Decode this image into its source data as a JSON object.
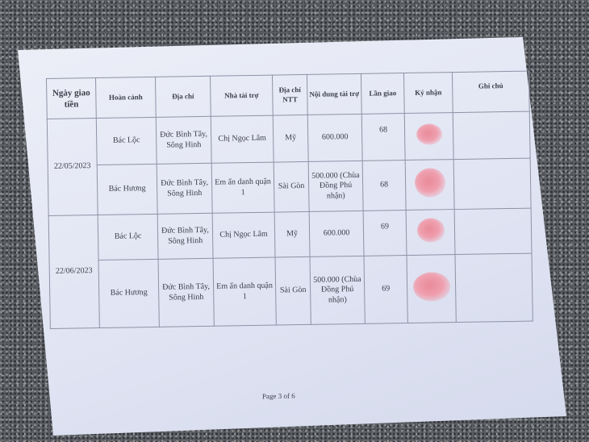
{
  "table": {
    "headers": [
      "Ngày giao tiền",
      "Hoàn cảnh",
      "Địa chỉ",
      "Nhà tài trợ",
      "Địa chỉ NTT",
      "Nội dung tài trợ",
      "Lần giao",
      "Ký nhận",
      "Ghi chú"
    ],
    "groups": [
      {
        "date": "22/05/2023",
        "rows": [
          {
            "hoan_canh": "Bác Lộc",
            "dia_chi": "Đức Bình Tây, Sông Hinh",
            "nha_tai_tro": "Chị Ngọc Lâm",
            "dia_chi_ntt": "Mỹ",
            "noi_dung": "600.000",
            "lan_giao": "68",
            "ky_nhan": "signed",
            "ghi_chu": ""
          },
          {
            "hoan_canh": "Bác Hương",
            "dia_chi": "Đức Bình Tây, Sông Hinh",
            "nha_tai_tro": "Em ẩn danh quận 1",
            "dia_chi_ntt": "Sài Gòn",
            "noi_dung": "500.000 (Chùa Đồng Phú nhận)",
            "lan_giao": "68",
            "ky_nhan": "signed",
            "ghi_chu": ""
          }
        ]
      },
      {
        "date": "22/06/2023",
        "rows": [
          {
            "hoan_canh": "Bác Lộc",
            "dia_chi": "Đức Bình Tây, Sông Hinh",
            "nha_tai_tro": "Chị Ngọc Lâm",
            "dia_chi_ntt": "Mỹ",
            "noi_dung": "600.000",
            "lan_giao": "69",
            "ky_nhan": "signed",
            "ghi_chu": ""
          },
          {
            "hoan_canh": "Bác Hương",
            "dia_chi": "Đức Bình Tây, Sông Hinh",
            "nha_tai_tro": "Em ẩn danh quận 1",
            "dia_chi_ntt": "Sài Gòn",
            "noi_dung": "500.000 (Chùa Đồng Phú nhận)",
            "lan_giao": "69",
            "ky_nhan": "signed",
            "ghi_chu": ""
          }
        ]
      }
    ]
  },
  "footer": {
    "page_label": "Page 3 of 6"
  },
  "colors": {
    "signature": "#e98b9a",
    "paper": "#e2e6f4",
    "background": "#5b5e63"
  }
}
